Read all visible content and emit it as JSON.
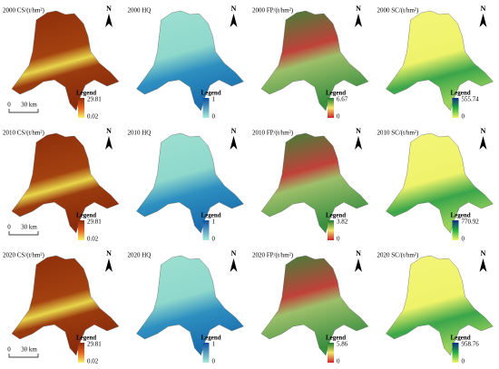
{
  "panels": [
    {
      "title": "2000 CS/(t/hm²)",
      "legend": "Legend",
      "max": 29.81,
      "min": 0.02,
      "north": "N",
      "scale": {
        "zero": 0,
        "distance": "30 km"
      }
    },
    {
      "title": "2000 HQ",
      "legend": "Legend",
      "max": 1,
      "min": 0,
      "north": "N"
    },
    {
      "title": "2000 FP/(t/hm²)",
      "legend": "Legend",
      "max": 6.67,
      "min": 0,
      "north": "N"
    },
    {
      "title": "2000 SC/(t/hm²)",
      "legend": "Legend",
      "max": 555.74,
      "min": 0,
      "north": "N"
    },
    {
      "title": "2010 CS/(t/hm²)",
      "legend": "Legend",
      "max": 29.81,
      "min": 0.02,
      "north": "N",
      "scale": {
        "zero": 0,
        "distance": "30 km"
      }
    },
    {
      "title": "2010 HQ",
      "legend": "Legend",
      "max": 1,
      "min": 0,
      "north": "N"
    },
    {
      "title": "2010 FP/(t/hm²)",
      "legend": "Legend",
      "max": 3.82,
      "min": 0,
      "north": "N"
    },
    {
      "title": "2010 SC/(t/hm²)",
      "legend": "Legend",
      "max": 770.92,
      "min": 0,
      "north": "N"
    },
    {
      "title": "2020 CS/(t/hm²)",
      "legend": "Legend",
      "max": 29.81,
      "min": 0.02,
      "north": "N",
      "scale": {
        "zero": 0,
        "distance": "30 km"
      }
    },
    {
      "title": "2020 HQ",
      "legend": "Legend",
      "max": 1,
      "min": 0,
      "north": "N"
    },
    {
      "title": "2020 FP/(t/hm²)",
      "legend": "Legend",
      "max": 5.86,
      "min": 0,
      "north": "N"
    },
    {
      "title": "2020 SC/(t/hm²)",
      "legend": "Legend",
      "max": 958.76,
      "min": 0,
      "north": "N"
    }
  ]
}
